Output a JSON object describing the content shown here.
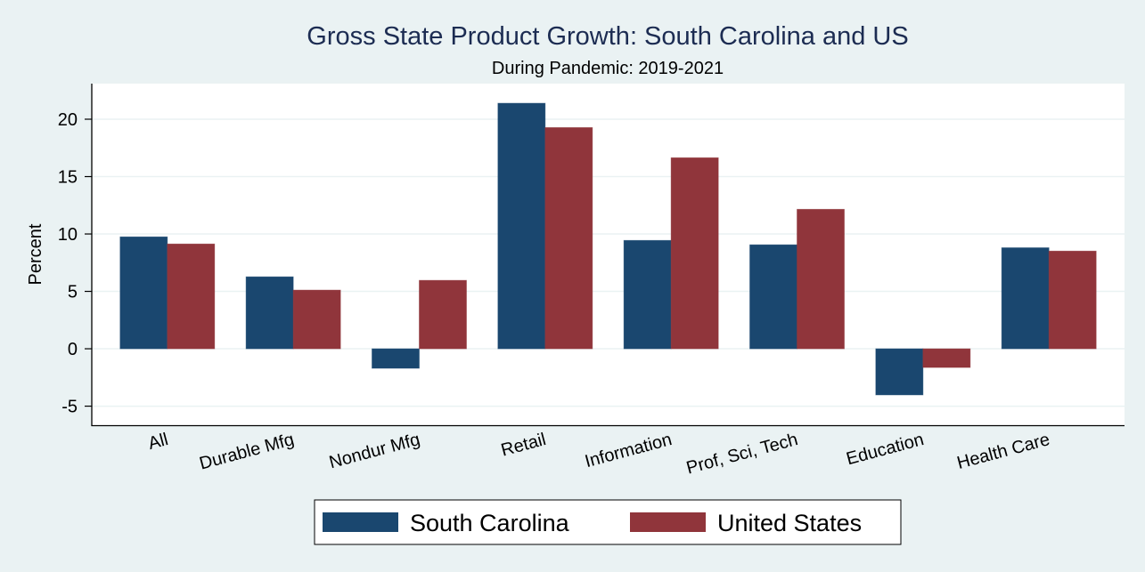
{
  "chart_data": {
    "type": "bar",
    "title": "Gross State Product Growth: South Carolina and US",
    "subtitle": "During Pandemic: 2019-2021",
    "xlabel": "",
    "ylabel": "Percent",
    "ylim": [
      -6.7,
      23.1
    ],
    "yticks": [
      -5,
      0,
      5,
      10,
      15,
      20
    ],
    "ytick_labels": [
      "-5",
      "0",
      "5",
      "10",
      "15",
      "20"
    ],
    "grid": true,
    "legend_position": "bottom",
    "categories": [
      "All",
      "Durable Mfg",
      "Nondur Mfg",
      "Retail",
      "Information",
      "Prof, Sci, Tech",
      "Education",
      "Health Care"
    ],
    "series": [
      {
        "name": "South Carolina",
        "color": "#1a476f",
        "values": [
          9.75,
          6.27,
          -1.7,
          21.39,
          9.44,
          9.06,
          -4.02,
          8.8
        ]
      },
      {
        "name": "United States",
        "color": "#90353b",
        "values": [
          9.13,
          5.11,
          5.96,
          19.27,
          16.64,
          12.15,
          -1.63,
          8.51
        ]
      }
    ]
  },
  "colors": {
    "background": "#eaf2f3",
    "plot_background": "#ffffff",
    "gridline": "#eaf2f3",
    "title": "#1c2c52"
  }
}
